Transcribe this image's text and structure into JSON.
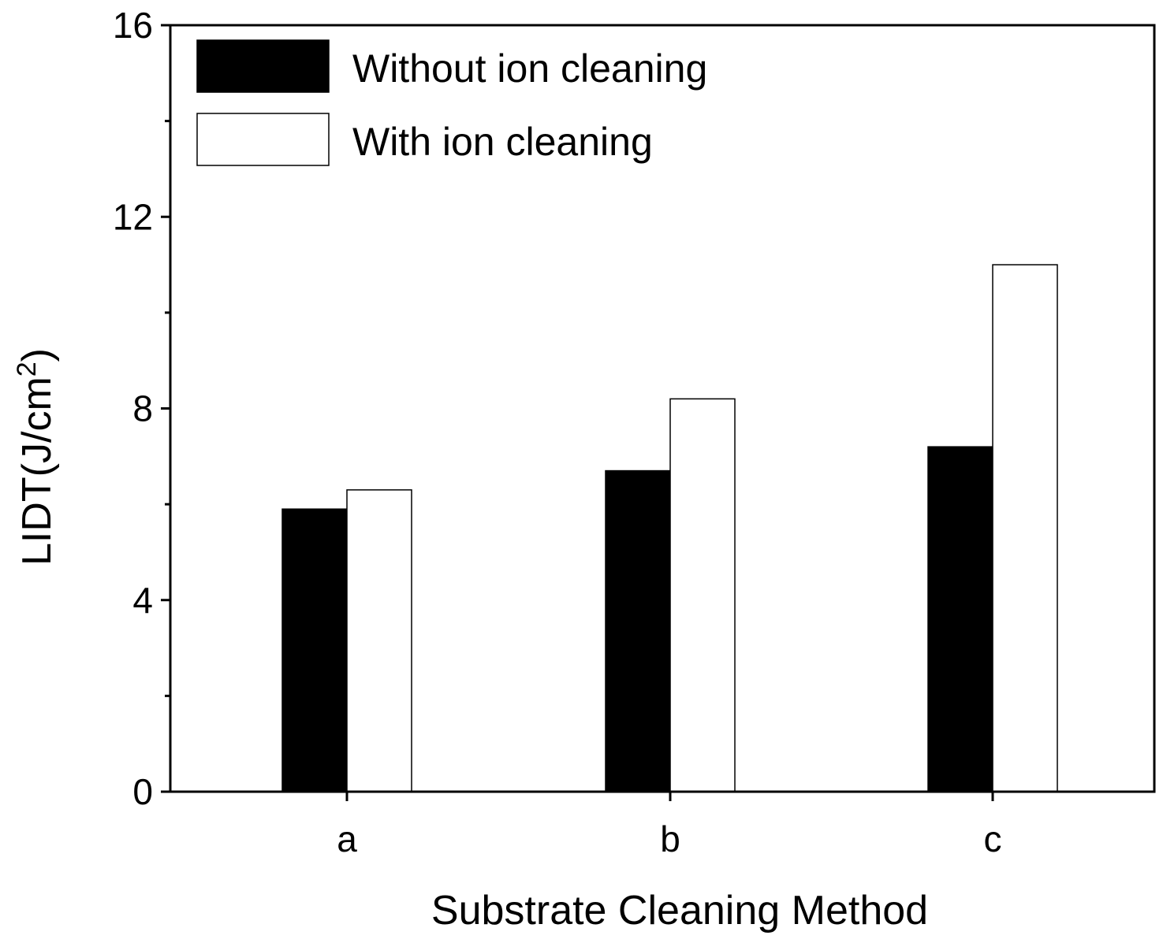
{
  "chart_data": {
    "type": "bar",
    "title": "",
    "categories": [
      "a",
      "b",
      "c"
    ],
    "series": [
      {
        "name": "Without ion cleaning",
        "values": [
          5.9,
          6.7,
          7.2
        ],
        "color": "#000000"
      },
      {
        "name": "With ion cleaning",
        "values": [
          6.3,
          8.2,
          11.0
        ],
        "color": "#ffffff"
      }
    ],
    "xlabel": "Substrate Cleaning Method",
    "ylabel_main": "LIDT(J/cm",
    "ylabel_sup": "2",
    "ylabel_close": ")",
    "ylim": [
      0,
      16
    ],
    "y_ticks": [
      0,
      4,
      8,
      12,
      16
    ],
    "y_tick_labels": [
      "0",
      "4",
      "8",
      "12",
      "16"
    ],
    "y_minor_ticks": [
      2,
      6,
      10,
      14
    ],
    "legend_position": "top-left",
    "grid": false
  }
}
